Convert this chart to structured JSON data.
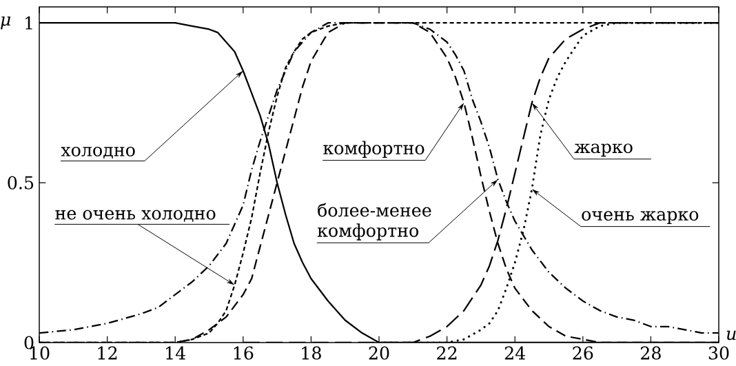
{
  "chart_data": {
    "type": "line",
    "xlabel": "u",
    "ylabel": "μ",
    "xlim": [
      10,
      30
    ],
    "ylim": [
      0,
      1.05
    ],
    "xticks": [
      10,
      12,
      14,
      16,
      18,
      20,
      22,
      24,
      26,
      28,
      30
    ],
    "yticks": [
      0,
      0.5,
      1
    ],
    "series": [
      {
        "color": "#000000",
        "line_style": "solid",
        "x": [
          10,
          14,
          14.5,
          15,
          15.25,
          15.5,
          15.75,
          16,
          16.25,
          16.5,
          16.75,
          17,
          17.25,
          17.5,
          17.75,
          18,
          18.5,
          19,
          19.5,
          20,
          30
        ],
        "values": [
          1,
          1,
          0.99,
          0.98,
          0.97,
          0.94,
          0.91,
          0.85,
          0.78,
          0.71,
          0.62,
          0.5,
          0.4,
          0.31,
          0.25,
          0.2,
          0.13,
          0.07,
          0.03,
          0,
          0
        ]
      },
      {
        "color": "#000000",
        "line_style": "densely dashed",
        "x": [
          10,
          14,
          14.5,
          15,
          15.25,
          15.5,
          15.75,
          16,
          16.25,
          16.5,
          16.75,
          17,
          17.25,
          17.5,
          17.75,
          18,
          18.5,
          19,
          30
        ],
        "values": [
          0,
          0,
          0.01,
          0.03,
          0.06,
          0.1,
          0.18,
          0.28,
          0.39,
          0.53,
          0.66,
          0.77,
          0.86,
          0.91,
          0.95,
          0.97,
          0.99,
          1,
          1
        ]
      },
      {
        "color": "#000000",
        "line_style": "dashed",
        "x": [
          10,
          14,
          14.5,
          15,
          15.5,
          16,
          16.25,
          16.5,
          16.75,
          17,
          17.25,
          17.5,
          17.75,
          18,
          18.5,
          19,
          21,
          21.5,
          22,
          22.25,
          22.5,
          22.75,
          23,
          23.25,
          23.5,
          23.75,
          24,
          24.5,
          25,
          25.5,
          26,
          26.5,
          30
        ],
        "values": [
          0,
          0,
          0.01,
          0.04,
          0.08,
          0.15,
          0.2,
          0.3,
          0.4,
          0.5,
          0.6,
          0.7,
          0.8,
          0.88,
          0.97,
          1,
          1,
          0.97,
          0.89,
          0.83,
          0.75,
          0.64,
          0.52,
          0.41,
          0.31,
          0.23,
          0.17,
          0.1,
          0.05,
          0.02,
          0.01,
          0,
          0
        ]
      },
      {
        "color": "#000000",
        "line_style": "dashdot",
        "x": [
          10,
          11,
          12,
          13,
          13.5,
          14,
          14.5,
          15,
          15.5,
          16,
          16.25,
          16.5,
          16.75,
          17,
          17.5,
          18,
          18.5,
          21,
          21.5,
          22,
          22.25,
          22.5,
          22.75,
          23,
          23.25,
          23.5,
          23.75,
          24,
          24.5,
          25,
          25.5,
          26,
          26.5,
          27,
          27.5,
          28,
          28.5,
          29,
          29.5,
          30
        ],
        "values": [
          0.03,
          0.04,
          0.06,
          0.09,
          0.11,
          0.15,
          0.19,
          0.24,
          0.31,
          0.43,
          0.54,
          0.63,
          0.71,
          0.79,
          0.91,
          0.97,
          1,
          1,
          0.98,
          0.94,
          0.9,
          0.85,
          0.76,
          0.69,
          0.61,
          0.51,
          0.44,
          0.38,
          0.29,
          0.22,
          0.17,
          0.13,
          0.1,
          0.08,
          0.07,
          0.05,
          0.05,
          0.04,
          0.03,
          0.03
        ]
      },
      {
        "color": "#000000",
        "line_style": "loosely dashed",
        "x": [
          16,
          21,
          21.5,
          22,
          22.5,
          23,
          23.25,
          23.5,
          23.75,
          24,
          24.25,
          24.5,
          24.75,
          25,
          25.5,
          26,
          26.5,
          30
        ],
        "values": [
          0,
          0,
          0.02,
          0.05,
          0.1,
          0.18,
          0.24,
          0.32,
          0.42,
          0.53,
          0.64,
          0.75,
          0.83,
          0.89,
          0.95,
          0.98,
          1,
          1
        ]
      },
      {
        "color": "#000000",
        "line_style": "dotted",
        "x": [
          20,
          22,
          22.5,
          23,
          23.25,
          23.5,
          23.75,
          24,
          24.25,
          24.5,
          24.75,
          25,
          25.25,
          25.5,
          26,
          26.5,
          27,
          30
        ],
        "values": [
          0,
          0,
          0.01,
          0.04,
          0.06,
          0.1,
          0.17,
          0.25,
          0.35,
          0.48,
          0.65,
          0.76,
          0.83,
          0.88,
          0.96,
          0.99,
          1,
          1
        ]
      }
    ],
    "annotations": [
      {
        "text": "холодно",
        "x": 16,
        "y": 0.85
      },
      {
        "text": "не очень холодно",
        "x": 15.75,
        "y": 0.18
      },
      {
        "text": "комфортно",
        "x": 22.5,
        "y": 0.75
      },
      {
        "text": "более-менее комфортно",
        "x": 23.5,
        "y": 0.51
      },
      {
        "text": "жарко",
        "x": 24.5,
        "y": 0.75
      },
      {
        "text": "очень жарко",
        "x": 24.5,
        "y": 0.48
      }
    ]
  }
}
